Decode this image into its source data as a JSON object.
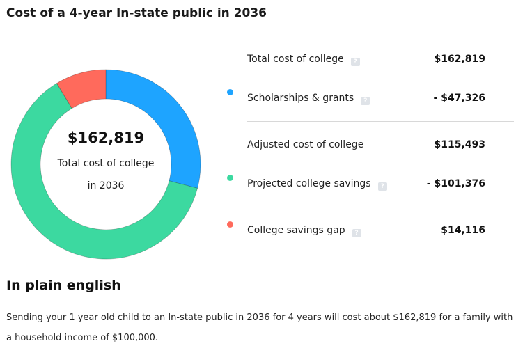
{
  "title": "Cost of a 4-year In-state public in 2036",
  "chart_data": {
    "type": "pie",
    "categories": [
      "Scholarships & grants",
      "Projected college savings",
      "College savings gap"
    ],
    "values": [
      47326,
      101376,
      14116
    ],
    "colors": [
      "#1ea4ff",
      "#3cd9a0",
      "#ff6a5c"
    ],
    "center": {
      "amount": "$162,819",
      "line1": "Total cost of college",
      "line2": "in 2036"
    }
  },
  "breakdown": {
    "total": {
      "label": "Total cost of college",
      "value": "$162,819",
      "help": "?"
    },
    "scholarships": {
      "label": "Scholarships & grants",
      "value": "- $47,326",
      "help": "?"
    },
    "adjusted": {
      "label": "Adjusted cost of college",
      "value": "$115,493"
    },
    "savings": {
      "label": "Projected college savings",
      "value": "- $101,376",
      "help": "?"
    },
    "gap": {
      "label": "College savings gap",
      "value": "$14,116",
      "help": "?"
    }
  },
  "plain": {
    "heading": "In plain english",
    "text": "Sending your 1 year old child to an In-state public in 2036 for 4 years will cost about $162,819 for a family with a household income of $100,000."
  }
}
